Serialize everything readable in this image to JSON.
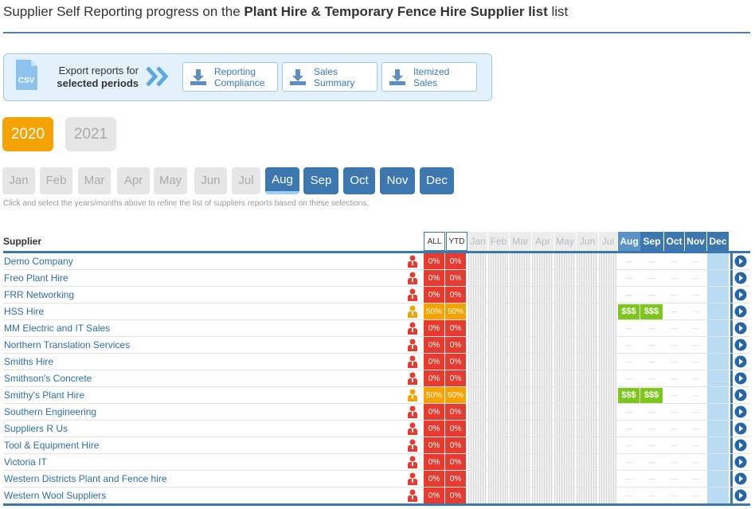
{
  "page": {
    "title_prefix": "Supplier Self Reporting progress on the ",
    "title_bold": "Plant Hire & Temporary Fence Hire Supplier list",
    "title_suffix": " list"
  },
  "export": {
    "csv_icon_text": "CSV",
    "label_line1": "Export reports for",
    "label_line2": "selected periods",
    "buttons": [
      {
        "line1": "Reporting",
        "line2": "Compliance"
      },
      {
        "line1": "Sales",
        "line2": "Summary"
      },
      {
        "line1": "Itemized",
        "line2": "Sales"
      }
    ]
  },
  "years": [
    {
      "label": "2020",
      "active": true
    },
    {
      "label": "2021",
      "active": false
    }
  ],
  "months": [
    {
      "label": "Jan",
      "state": "off"
    },
    {
      "label": "Feb",
      "state": "off"
    },
    {
      "label": "Mar",
      "state": "off"
    },
    {
      "label": "Apr",
      "state": "off"
    },
    {
      "label": "May",
      "state": "off"
    },
    {
      "label": "Jun",
      "state": "off"
    },
    {
      "label": "Jul",
      "state": "off"
    },
    {
      "label": "Aug",
      "state": "selected"
    },
    {
      "label": "Sep",
      "state": "on"
    },
    {
      "label": "Oct",
      "state": "on"
    },
    {
      "label": "Nov",
      "state": "on"
    },
    {
      "label": "Dec",
      "state": "on"
    }
  ],
  "hint": "Click and select the years/months above to refine the list of suppliers reports based on these selections.",
  "table": {
    "supplier_header": "Supplier",
    "all_header": "ALL",
    "ytd_header": "YTD",
    "month_headers": [
      "Jan",
      "Feb",
      "Mar",
      "Apr",
      "May",
      "Jun",
      "Jul",
      "Aug",
      "Sep",
      "Oct",
      "Nov",
      "Dec"
    ],
    "empty_mark": "—",
    "rows": [
      {
        "name": "Demo Company",
        "all": "0%",
        "ytd": "0%",
        "status": "red",
        "aug": "",
        "sep": ""
      },
      {
        "name": "Freo Plant Hire",
        "all": "0%",
        "ytd": "0%",
        "status": "red",
        "aug": "",
        "sep": ""
      },
      {
        "name": "FRR Networking",
        "all": "0%",
        "ytd": "0%",
        "status": "red",
        "aug": "",
        "sep": ""
      },
      {
        "name": "HSS Hire",
        "all": "50%",
        "ytd": "50%",
        "status": "amber",
        "aug": "$$$",
        "sep": "$$$"
      },
      {
        "name": "MM Electric and IT Sales",
        "all": "0%",
        "ytd": "0%",
        "status": "red",
        "aug": "",
        "sep": ""
      },
      {
        "name": "Northern Translation Services",
        "all": "0%",
        "ytd": "0%",
        "status": "red",
        "aug": "",
        "sep": ""
      },
      {
        "name": "Smiths Hire",
        "all": "0%",
        "ytd": "0%",
        "status": "red",
        "aug": "",
        "sep": ""
      },
      {
        "name": "Smithson's Concrete",
        "all": "0%",
        "ytd": "0%",
        "status": "red",
        "aug": "",
        "sep": ""
      },
      {
        "name": "Smithy's Plant Hire",
        "all": "50%",
        "ytd": "50%",
        "status": "amber",
        "aug": "$$$",
        "sep": "$$$"
      },
      {
        "name": "Southern Engineering",
        "all": "0%",
        "ytd": "0%",
        "status": "red",
        "aug": "",
        "sep": ""
      },
      {
        "name": "Suppliers R Us",
        "all": "0%",
        "ytd": "0%",
        "status": "red",
        "aug": "",
        "sep": ""
      },
      {
        "name": "Tool & Equipment Hire",
        "all": "0%",
        "ytd": "0%",
        "status": "red",
        "aug": "",
        "sep": ""
      },
      {
        "name": "Victoria IT",
        "all": "0%",
        "ytd": "0%",
        "status": "red",
        "aug": "",
        "sep": ""
      },
      {
        "name": "Western Districts Plant and Fence hire",
        "all": "0%",
        "ytd": "0%",
        "status": "red",
        "aug": "",
        "sep": ""
      },
      {
        "name": "Western Wool Suppliers",
        "all": "0%",
        "ytd": "0%",
        "status": "red",
        "aug": "",
        "sep": ""
      }
    ]
  },
  "colors": {
    "accent_blue": "#3d77b0",
    "orange": "#f5a300",
    "red": "#e63b2e",
    "green": "#7dc61b"
  }
}
